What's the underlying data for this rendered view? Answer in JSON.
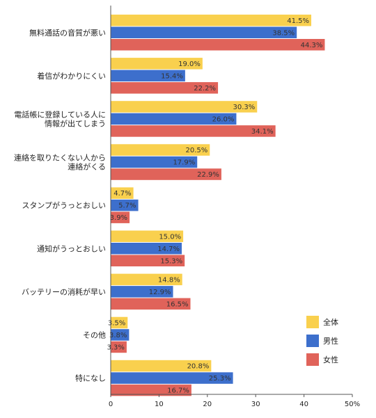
{
  "chart_data": {
    "type": "bar",
    "orientation": "horizontal",
    "categories": [
      [
        "無料通話の音質が悪い"
      ],
      [
        "着信がわかりにくい"
      ],
      [
        "電話帳に登録している人に",
        "情報が出てしまう"
      ],
      [
        "連絡を取りたくない人から",
        "連絡がくる"
      ],
      [
        "スタンプがうっとおしい"
      ],
      [
        "通知がうっとおしい"
      ],
      [
        "バッテリーの消耗が早い"
      ],
      [
        "その他"
      ],
      [
        "特になし"
      ]
    ],
    "series": [
      {
        "name": "全体",
        "color": "#F9D04E",
        "values": [
          41.5,
          19.0,
          30.3,
          20.5,
          4.7,
          15.0,
          14.8,
          3.5,
          20.8
        ]
      },
      {
        "name": "男性",
        "color": "#3D6FCC",
        "values": [
          38.5,
          15.4,
          26.0,
          17.9,
          5.7,
          14.7,
          12.9,
          3.8,
          25.3
        ]
      },
      {
        "name": "女性",
        "color": "#E0635A",
        "values": [
          44.3,
          22.2,
          34.1,
          22.9,
          3.9,
          15.3,
          16.5,
          3.3,
          16.7
        ]
      }
    ],
    "xlim": [
      0,
      50
    ],
    "ticks": [
      "0",
      "10",
      "20",
      "30",
      "40",
      "50%"
    ],
    "grid": false,
    "legend_position": "bottom-right",
    "value_suffix": "%"
  }
}
